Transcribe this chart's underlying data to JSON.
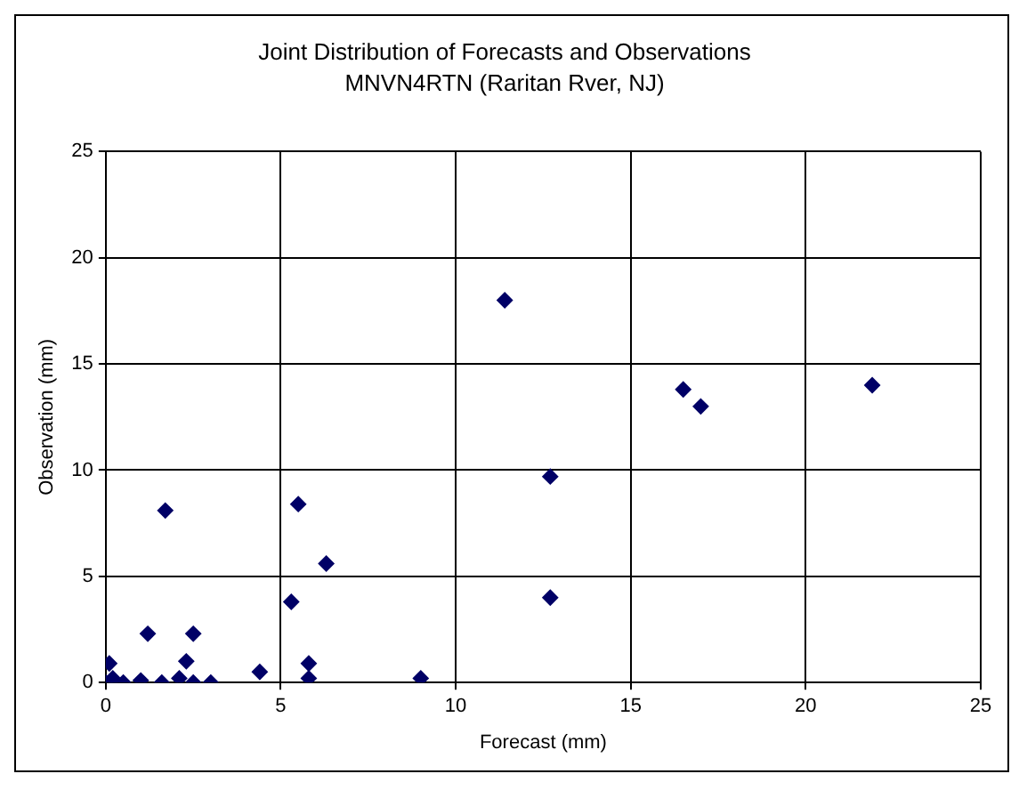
{
  "chart_data": {
    "type": "scatter",
    "title": "Joint Distribution of Forecasts and Observations",
    "subtitle": "MNVN4RTN (Raritan Rver, NJ)",
    "xlabel": "Forecast (mm)",
    "ylabel": "Observation (mm)",
    "series": [
      {
        "color": "#000066",
        "x": [
          1.7,
          5.5,
          6.3,
          5.3,
          1.2,
          2.5,
          2.3,
          5.8,
          5.8,
          9.0,
          4.4,
          3.0,
          0.1,
          0.2,
          0,
          0.5,
          1.0,
          1.6,
          2.1,
          2.5,
          11.4,
          12.7,
          12.7,
          16.5,
          17.0,
          21.9
        ],
        "values": [
          8.1,
          8.4,
          5.6,
          3.8,
          2.3,
          2.3,
          1.0,
          0.9,
          0.2,
          0.2,
          0.5,
          0,
          0.9,
          0.2,
          0,
          0,
          0.1,
          0,
          0.2,
          0,
          18.0,
          9.7,
          4.0,
          13.8,
          13.0,
          14.0
        ]
      }
    ],
    "xlim": [
      0,
      25
    ],
    "xticks": [
      0,
      5,
      10,
      15,
      20,
      25
    ],
    "ylim": [
      0,
      25
    ],
    "yticks": [
      0,
      5,
      10,
      15,
      20,
      25
    ],
    "grid": true,
    "legend": false,
    "marker": "diamond"
  }
}
